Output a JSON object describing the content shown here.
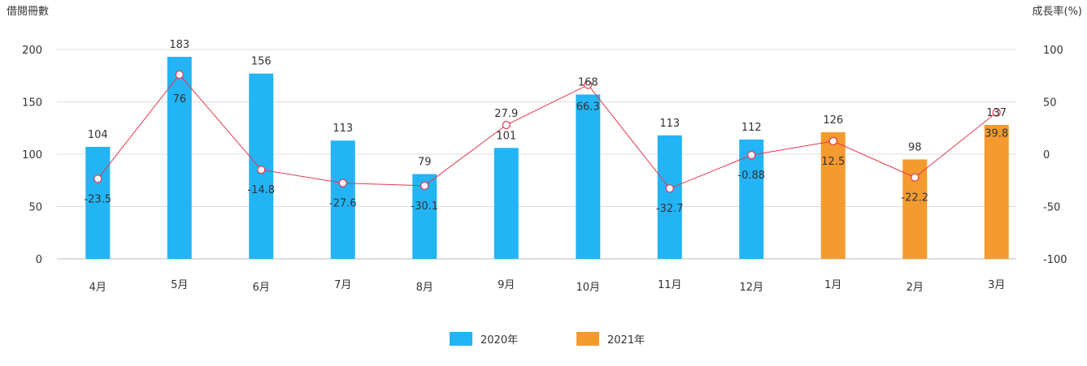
{
  "chart_data": {
    "type": "bar",
    "categories": [
      "4月",
      "5月",
      "6月",
      "7月",
      "8月",
      "9月",
      "10月",
      "11月",
      "12月",
      "1月",
      "2月",
      "3月"
    ],
    "series": [
      {
        "name": "2020年",
        "color": "#22b4f5",
        "values": [
          104,
          183,
          156,
          113,
          79,
          101,
          168,
          113,
          112,
          null,
          null,
          null
        ]
      },
      {
        "name": "2021年",
        "color": "#f59a2f",
        "values": [
          null,
          null,
          null,
          null,
          null,
          null,
          null,
          null,
          null,
          126,
          98,
          137
        ]
      }
    ],
    "bar_heights_estimated": [
      107,
      193,
      177,
      113,
      81,
      106,
      157,
      118,
      114,
      121,
      95,
      128
    ],
    "growth_rate": {
      "type": "line",
      "axis": "right",
      "color": "#e8364a",
      "values": [
        -23.5,
        76,
        -14.8,
        -27.6,
        -30.1,
        27.9,
        66.3,
        -32.7,
        -0.88,
        12.5,
        -22.2,
        39.8
      ],
      "labels": [
        "-23.5",
        "76",
        "-14.8",
        "-27.6",
        "-30.1",
        "27.9",
        "66.3",
        "-32.7",
        "-0.88",
        "12.5",
        "-22.2",
        "39.8"
      ]
    },
    "ylabel": "借閱冊數",
    "y2label": "成長率(%)",
    "ylim": [
      0,
      200
    ],
    "y2lim": [
      -100,
      100
    ],
    "yticks": [
      "0",
      "50",
      "100",
      "150",
      "200"
    ],
    "y2ticks": [
      "-100",
      "-50",
      "0",
      "50",
      "100"
    ],
    "grid": true,
    "legend_position": "bottom"
  }
}
